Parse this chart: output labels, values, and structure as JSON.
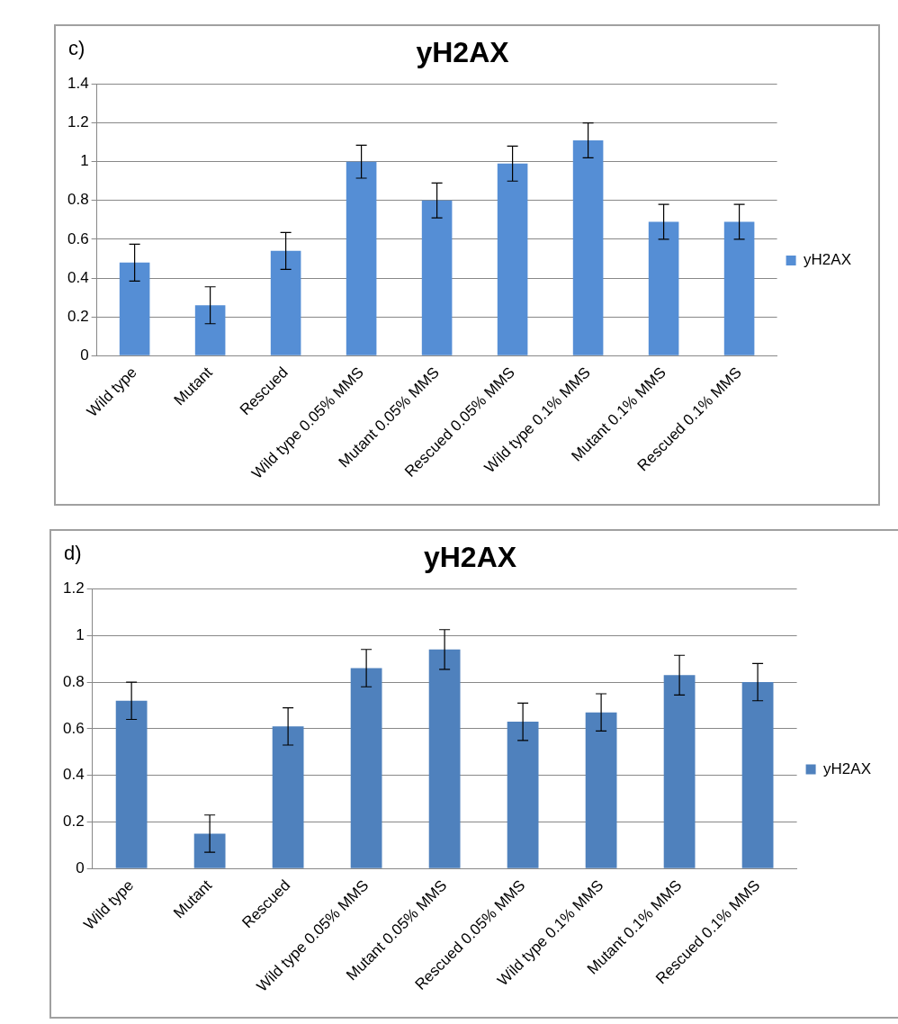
{
  "chart_data": [
    {
      "type": "bar",
      "title": "yH2AX",
      "annotations": [
        "c)"
      ],
      "categories": [
        "Wild type",
        "Mutant",
        "Rescued",
        "Wild type 0.05% MMS",
        "Mutant 0.05% MMS",
        "Rescued 0.05% MMS",
        "Wild type 0.1% MMS",
        "Mutant 0.1% MMS",
        "Rescued 0.1% MMS"
      ],
      "series": [
        {
          "name": "yH2AX",
          "color": "#558ed5",
          "values": [
            0.48,
            0.26,
            0.54,
            1.0,
            0.8,
            0.99,
            1.11,
            0.69,
            0.69
          ],
          "errors": [
            0.095,
            0.095,
            0.095,
            0.085,
            0.09,
            0.09,
            0.09,
            0.09,
            0.09
          ]
        }
      ],
      "ylim": [
        0,
        1.4
      ],
      "yticks": [
        0,
        0.2,
        0.4,
        0.6,
        0.8,
        1,
        1.2,
        1.4
      ],
      "grid": "y",
      "legend": "right"
    },
    {
      "type": "bar",
      "title": "yH2AX",
      "annotations": [
        "d)"
      ],
      "categories": [
        "Wild type",
        "Mutant",
        "Rescued",
        "Wild type 0.05% MMS",
        "Mutant 0.05% MMS",
        "Rescued 0.05% MMS",
        "Wild type 0.1% MMS",
        "Mutant 0.1% MMS",
        "Rescued 0.1% MMS"
      ],
      "series": [
        {
          "name": "yH2AX",
          "color": "#4f81bd",
          "values": [
            0.72,
            0.15,
            0.61,
            0.86,
            0.94,
            0.63,
            0.67,
            0.83,
            0.8
          ],
          "errors": [
            0.08,
            0.08,
            0.08,
            0.08,
            0.085,
            0.08,
            0.08,
            0.085,
            0.08
          ]
        }
      ],
      "ylim": [
        0,
        1.2
      ],
      "yticks": [
        0,
        0.2,
        0.4,
        0.6,
        0.8,
        1,
        1.2
      ],
      "grid": "y",
      "legend": "right"
    }
  ]
}
